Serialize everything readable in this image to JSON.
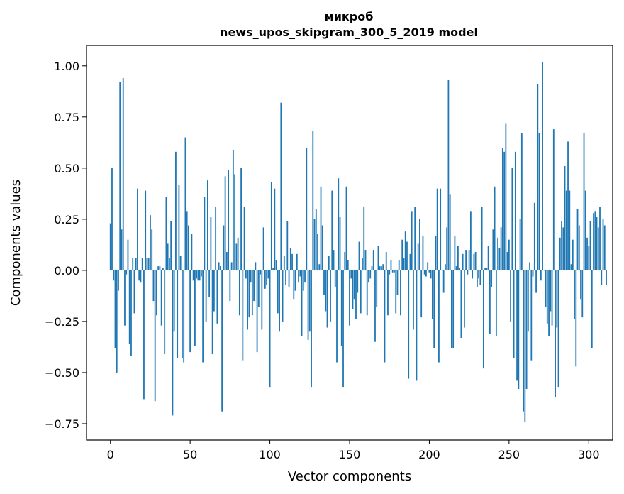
{
  "chart_data": {
    "type": "bar",
    "title": [
      "микроб",
      "news_upos_skipgram_300_5_2019 model"
    ],
    "xlabel": "Vector components",
    "ylabel": "Components values",
    "xlim": [
      -15,
      315
    ],
    "ylim": [
      -0.83,
      1.1
    ],
    "xticks": [
      0,
      50,
      100,
      150,
      200,
      250,
      300
    ],
    "xtick_labels": [
      "0",
      "50",
      "100",
      "150",
      "200",
      "250",
      "300"
    ],
    "yticks": [
      -0.75,
      -0.5,
      -0.25,
      0.0,
      0.25,
      0.5,
      0.75,
      1.0
    ],
    "ytick_labels": [
      "−0.75",
      "−0.50",
      "−0.25",
      "0.00",
      "0.25",
      "0.50",
      "0.75",
      "1.00"
    ],
    "grid": false,
    "color": "#1f77b4",
    "series": [
      {
        "x_start": 0,
        "values": [
          0.23,
          0.5,
          -0.05,
          -0.38,
          -0.5,
          -0.1,
          0.92,
          0.2,
          0.94,
          -0.27,
          -0.02,
          0.15,
          -0.36,
          -0.42,
          0.06,
          -0.21,
          0.06,
          0.4,
          -0.05,
          -0.06,
          0.06,
          -0.63,
          0.39,
          0.06,
          0.06,
          0.27,
          0.2,
          -0.15,
          -0.64,
          -0.22,
          0.02,
          0.02,
          -0.27,
          0.01,
          -0.41,
          0.36,
          0.13,
          0.06,
          0.24,
          -0.71,
          -0.3,
          0.58,
          -0.43,
          0.42,
          0.07,
          -0.43,
          -0.45,
          0.65,
          0.29,
          0.22,
          -0.4,
          0.18,
          -0.05,
          -0.37,
          -0.04,
          -0.05,
          -0.05,
          -0.03,
          -0.45,
          0.36,
          -0.25,
          0.44,
          -0.13,
          0.26,
          -0.41,
          -0.2,
          0.31,
          -0.26,
          0.04,
          0.02,
          -0.69,
          0.22,
          0.46,
          0.09,
          0.49,
          -0.15,
          0.04,
          0.59,
          0.47,
          0.13,
          0.16,
          -0.22,
          0.5,
          -0.44,
          0.31,
          -0.04,
          -0.29,
          -0.23,
          -0.06,
          -0.22,
          -0.15,
          0.04,
          -0.4,
          -0.18,
          -0.02,
          -0.29,
          0.21,
          -0.09,
          -0.07,
          -0.04,
          -0.57,
          0.43,
          0.01,
          0.4,
          0.05,
          -0.21,
          -0.3,
          0.82,
          -0.25,
          0.07,
          -0.07,
          0.24,
          -0.08,
          0.11,
          0.08,
          -0.14,
          -0.1,
          0.08,
          -0.06,
          -0.03,
          -0.32,
          -0.1,
          -0.06,
          0.6,
          -0.34,
          -0.3,
          -0.57,
          0.68,
          0.25,
          0.3,
          0.18,
          0.03,
          0.41,
          0.22,
          -0.12,
          -0.2,
          -0.28,
          0.07,
          -0.25,
          0.39,
          0.1,
          -0.08,
          -0.45,
          0.45,
          0.26,
          -0.37,
          -0.57,
          0.09,
          0.41,
          0.05,
          -0.27,
          -0.04,
          -0.19,
          -0.14,
          -0.24,
          -0.11,
          0.14,
          -0.21,
          0.06,
          0.31,
          0.1,
          -0.22,
          -0.06,
          -0.04,
          0.02,
          0.1,
          -0.35,
          -0.18,
          0.12,
          0.02,
          0.02,
          0.03,
          -0.45,
          0.09,
          -0.22,
          -0.02,
          0.05,
          -0.01,
          -0.01,
          -0.21,
          -0.12,
          0.05,
          -0.22,
          0.15,
          0.06,
          0.19,
          0.14,
          -0.53,
          0.08,
          0.29,
          -0.29,
          0.31,
          -0.54,
          0.13,
          0.25,
          -0.23,
          0.17,
          -0.02,
          -0.03,
          0.04,
          -0.01,
          -0.04,
          -0.24,
          -0.38,
          0.17,
          0.4,
          -0.45,
          0.4,
          0.0,
          -0.11,
          0.03,
          0.21,
          0.93,
          0.37,
          -0.38,
          -0.38,
          0.17,
          0.02,
          0.12,
          0.01,
          -0.33,
          0.08,
          -0.28,
          0.1,
          -0.02,
          0.1,
          0.29,
          -0.04,
          0.08,
          0.09,
          -0.08,
          -0.04,
          -0.07,
          0.31,
          -0.48,
          0.01,
          0.01,
          0.12,
          -0.31,
          -0.08,
          0.2,
          0.41,
          -0.32,
          0.16,
          0.11,
          0.21,
          0.6,
          0.58,
          0.72,
          0.09,
          0.15,
          -0.25,
          0.5,
          -0.43,
          0.58,
          -0.54,
          -0.58,
          0.25,
          0.67,
          -0.69,
          -0.74,
          -0.58,
          -0.3,
          0.04,
          -0.44,
          -0.03,
          0.33,
          -0.11,
          0.91,
          0.67,
          -0.05,
          1.02,
          0.0,
          -0.18,
          -0.26,
          -0.32,
          -0.2,
          -0.27,
          0.69,
          -0.62,
          -0.28,
          -0.57,
          0.16,
          0.24,
          0.21,
          0.51,
          0.39,
          0.63,
          0.39,
          0.03,
          0.15,
          -0.24,
          -0.47,
          0.3,
          0.22,
          -0.14,
          -0.23,
          0.67,
          0.39,
          0.16,
          0.12,
          0.24,
          -0.38,
          0.28,
          0.29,
          0.26,
          0.21,
          0.31,
          -0.07,
          0.25,
          0.22,
          -0.07
        ]
      }
    ]
  }
}
